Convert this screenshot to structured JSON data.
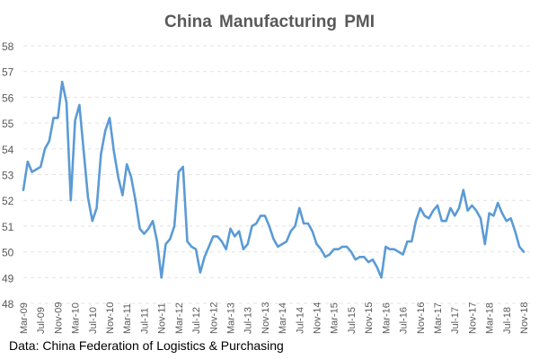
{
  "chart_data": {
    "type": "line",
    "title": "China Manufacturing PMI",
    "source_note": "Data: China Federation of Logistics & Purchasing",
    "xlabel": "",
    "ylabel": "",
    "ylim": [
      48,
      58
    ],
    "yticks": [
      48,
      49,
      50,
      51,
      52,
      53,
      54,
      55,
      56,
      57,
      58
    ],
    "grid": true,
    "legend": "none",
    "line_color": "#5b9bd5",
    "x_start": "Mar-09",
    "x_tick_labels": [
      "Mar-09",
      "Jul-09",
      "Nov-09",
      "Mar-10",
      "Jul-10",
      "Nov-10",
      "Mar-11",
      "Jul-11",
      "Nov-11",
      "Mar-12",
      "Jul-12",
      "Nov-12",
      "Mar-13",
      "Jul-13",
      "Nov-13",
      "Mar-14",
      "Jul-14",
      "Nov-14",
      "Mar-15",
      "Jul-15",
      "Nov-15",
      "Mar-16",
      "Jul-16",
      "Nov-16",
      "Mar-17",
      "Jul-17",
      "Nov-17",
      "Mar-18",
      "Jul-18",
      "Nov-18"
    ],
    "x_tick_every_months": 4,
    "series": [
      {
        "name": "China Manufacturing PMI",
        "values": [
          52.4,
          53.5,
          53.1,
          53.2,
          53.3,
          54.0,
          54.3,
          55.2,
          55.2,
          56.6,
          55.8,
          52.0,
          55.1,
          55.7,
          53.9,
          52.1,
          51.2,
          51.7,
          53.8,
          54.7,
          55.2,
          53.9,
          52.9,
          52.2,
          53.4,
          52.9,
          52.0,
          50.9,
          50.7,
          50.9,
          51.2,
          50.4,
          49.0,
          50.3,
          50.5,
          51.0,
          53.1,
          53.3,
          50.4,
          50.2,
          50.1,
          49.2,
          49.8,
          50.2,
          50.6,
          50.6,
          50.4,
          50.1,
          50.9,
          50.6,
          50.8,
          50.1,
          50.3,
          51.0,
          51.1,
          51.4,
          51.4,
          51.0,
          50.5,
          50.2,
          50.3,
          50.4,
          50.8,
          51.0,
          51.7,
          51.1,
          51.1,
          50.8,
          50.3,
          50.1,
          49.8,
          49.9,
          50.1,
          50.1,
          50.2,
          50.2,
          50.0,
          49.7,
          49.8,
          49.8,
          49.6,
          49.7,
          49.4,
          49.0,
          50.2,
          50.1,
          50.1,
          50.0,
          49.9,
          50.4,
          50.4,
          51.2,
          51.7,
          51.4,
          51.3,
          51.6,
          51.8,
          51.2,
          51.2,
          51.7,
          51.4,
          51.7,
          52.4,
          51.6,
          51.8,
          51.6,
          51.3,
          50.3,
          51.5,
          51.4,
          51.9,
          51.5,
          51.2,
          51.3,
          50.8,
          50.2,
          50.0
        ]
      }
    ]
  }
}
